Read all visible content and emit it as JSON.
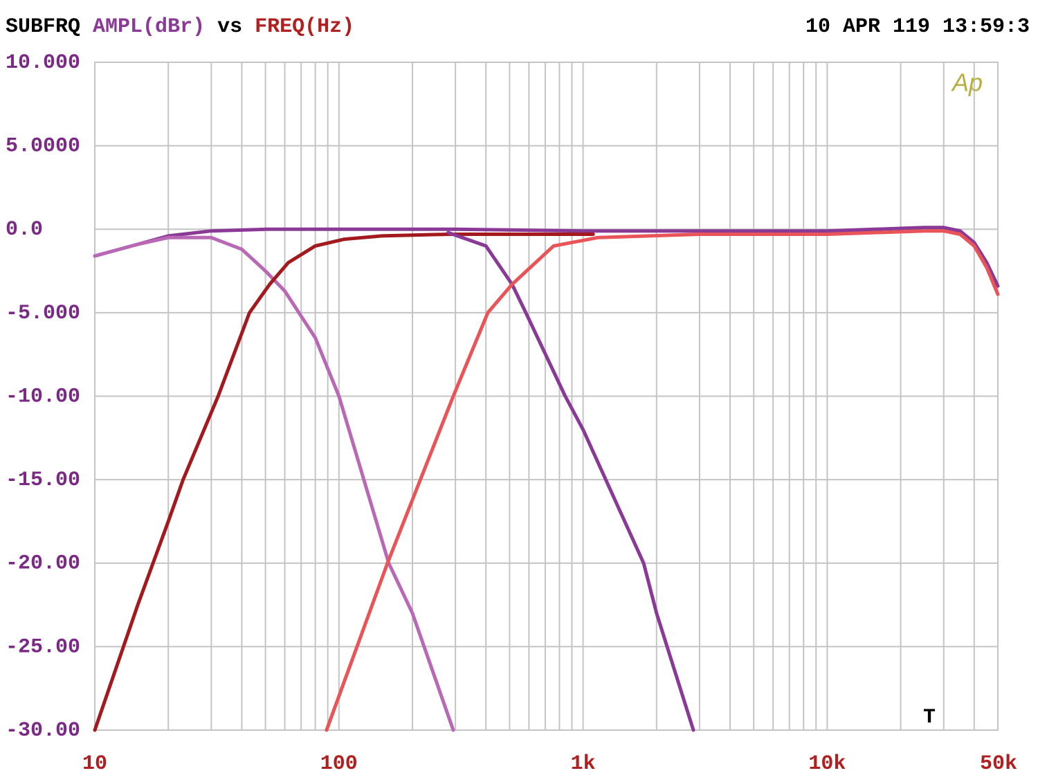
{
  "chart_data": {
    "type": "line",
    "title": {
      "prefix": "SUBFRQ",
      "y_label": "AMPL(dBr)",
      "vs": "vs",
      "x_label": "FREQ(Hz)"
    },
    "timestamp": "10 APR 119 13:59:3",
    "logo": "Ap",
    "marker": "T",
    "xscale": "log",
    "grid": true,
    "xlim": [
      10,
      50000
    ],
    "ylim": [
      -30,
      10
    ],
    "xticks": [
      10,
      100,
      {
        "value": 1000,
        "label": "1k"
      },
      {
        "value": 10000,
        "label": "10k"
      },
      {
        "value": 50000,
        "label": "50k"
      }
    ],
    "xminor_grid": [
      20,
      30,
      40,
      50,
      60,
      70,
      80,
      90,
      200,
      300,
      400,
      500,
      600,
      700,
      800,
      900,
      2000,
      3000,
      4000,
      5000,
      6000,
      7000,
      8000,
      9000,
      20000,
      30000,
      40000
    ],
    "yticks": [
      {
        "value": 10,
        "label": "10.000"
      },
      {
        "value": 5,
        "label": "5.0000"
      },
      {
        "value": 0,
        "label": "0.0"
      },
      {
        "value": -5,
        "label": "-5.000"
      },
      {
        "value": -10,
        "label": "-10.00"
      },
      {
        "value": -15,
        "label": "-15.00"
      },
      {
        "value": -20,
        "label": "-20.00"
      },
      {
        "value": -25,
        "label": "-25.00"
      },
      {
        "value": -30,
        "label": "-30.00"
      }
    ],
    "series": [
      {
        "color": "#8a3a96",
        "x": [
          10,
          15,
          20,
          30,
          50,
          100,
          300,
          1000,
          3000,
          10000,
          25000,
          30000,
          35000,
          40000,
          45000,
          50000
        ],
        "values": [
          -1.6,
          -0.9,
          -0.4,
          -0.1,
          0,
          0,
          0,
          -0.1,
          -0.1,
          -0.1,
          0.1,
          0.1,
          -0.1,
          -0.8,
          -2,
          -3.4
        ]
      },
      {
        "color": "#b868b4",
        "x": [
          10,
          15,
          20,
          30,
          40,
          50,
          60,
          80,
          100,
          160,
          200,
          294
        ],
        "values": [
          -1.6,
          -0.9,
          -0.5,
          -0.5,
          -1.2,
          -2.5,
          -3.7,
          -6.5,
          -10,
          -20,
          -23,
          -30
        ]
      },
      {
        "color": "#a31a1e",
        "x": [
          10,
          15,
          20,
          23,
          32,
          43,
          52,
          62,
          80,
          105,
          150,
          280,
          600,
          1100
        ],
        "values": [
          -30,
          -22.5,
          -17.5,
          -15,
          -10,
          -5,
          -3.3,
          -2,
          -1,
          -0.6,
          -0.4,
          -0.3,
          -0.3,
          -0.3
        ]
      },
      {
        "color": "#8a3a96",
        "x": [
          280,
          400,
          512,
          583,
          845,
          1000,
          1770,
          2000,
          2830
        ],
        "values": [
          -0.2,
          -1,
          -3.3,
          -5,
          -10,
          -12,
          -20,
          -23,
          -30
        ]
      },
      {
        "color": "#e85458",
        "x": [
          89,
          158,
          294,
          407,
          512,
          757,
          1150,
          3000,
          10000,
          25000,
          30000,
          35000,
          40000,
          45000,
          50000
        ],
        "values": [
          -30,
          -20,
          -10,
          -5,
          -3.3,
          -1,
          -0.5,
          -0.3,
          -0.3,
          -0.1,
          -0.1,
          -0.3,
          -1,
          -2.3,
          -3.9
        ]
      }
    ]
  }
}
